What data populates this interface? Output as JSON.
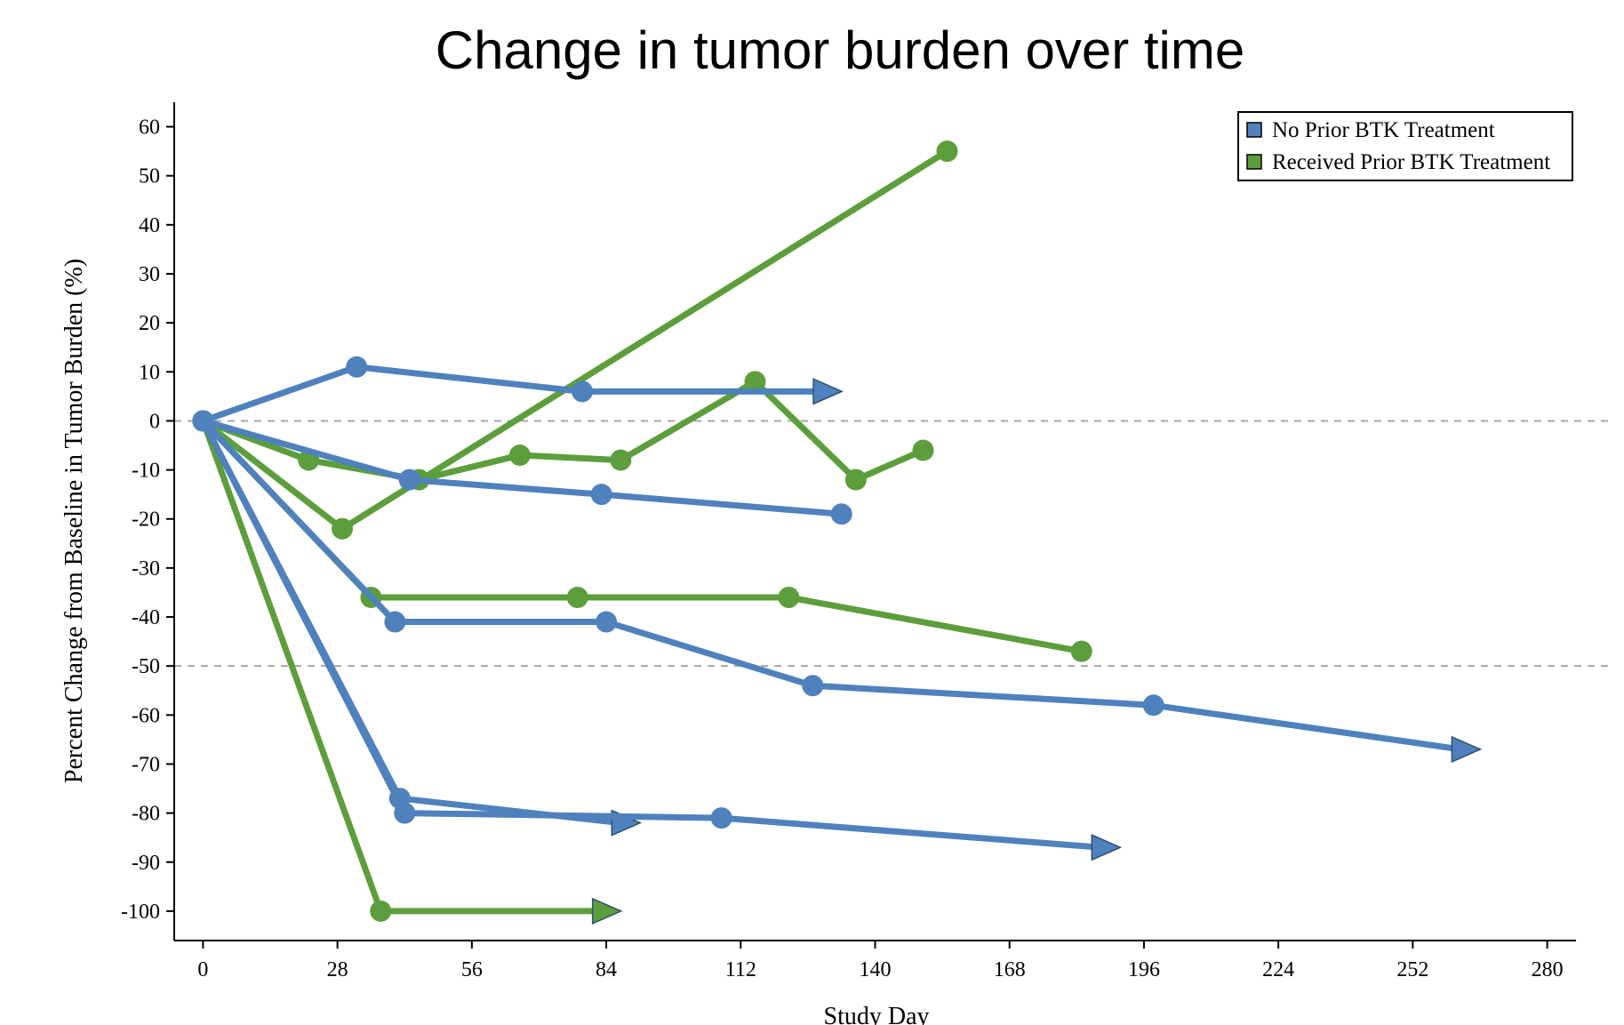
{
  "chart_data": {
    "type": "line",
    "title": "Change in tumor burden over time",
    "xlabel": "Study Day",
    "ylabel": "Percent Change from Baseline in Tumor Burden (%)",
    "xlim": [
      -6,
      286
    ],
    "ylim": [
      -106,
      65
    ],
    "xticks": [
      0,
      28,
      56,
      84,
      112,
      140,
      168,
      196,
      224,
      252,
      280
    ],
    "yticks": [
      60,
      50,
      40,
      30,
      20,
      10,
      0,
      -10,
      -20,
      -30,
      -40,
      -50,
      -60,
      -70,
      -80,
      -90,
      -100
    ],
    "reference_lines": [
      0,
      -50
    ],
    "grid": false,
    "legend_position": "top-right",
    "series": [
      {
        "name": "No Prior BTK Treatment",
        "color": "#4f81bd",
        "groups": [
          {
            "points": [
              [
                0,
                0
              ],
              [
                32,
                11
              ],
              [
                79,
                6
              ],
              [
                129,
                6
              ]
            ],
            "ongoing": true
          },
          {
            "points": [
              [
                0,
                0
              ],
              [
                43,
                -12
              ],
              [
                83,
                -15
              ],
              [
                133,
                -19
              ]
            ],
            "ongoing": false
          },
          {
            "points": [
              [
                0,
                0
              ],
              [
                40,
                -41
              ],
              [
                84,
                -41
              ],
              [
                127,
                -54
              ],
              [
                198,
                -58
              ],
              [
                262,
                -67
              ]
            ],
            "ongoing": true
          },
          {
            "points": [
              [
                0,
                0
              ],
              [
                41,
                -77
              ],
              [
                87,
                -82
              ]
            ],
            "ongoing": true
          },
          {
            "points": [
              [
                0,
                0
              ],
              [
                42,
                -80
              ],
              [
                108,
                -81
              ],
              [
                187,
                -87
              ]
            ],
            "ongoing": true
          }
        ]
      },
      {
        "name": "Received Prior BTK Treatment",
        "color": "#5c9e3b",
        "groups": [
          {
            "points": [
              [
                0,
                0
              ],
              [
                29,
                -22
              ],
              [
                155,
                55
              ]
            ],
            "ongoing": false
          },
          {
            "points": [
              [
                0,
                0
              ],
              [
                22,
                -8
              ],
              [
                45,
                -12
              ],
              [
                66,
                -7
              ],
              [
                87,
                -8
              ],
              [
                115,
                8
              ],
              [
                136,
                -12
              ],
              [
                150,
                -6
              ]
            ],
            "ongoing": false
          },
          {
            "points": [
              [
                0,
                0
              ],
              [
                35,
                -36
              ],
              [
                78,
                -36
              ],
              [
                122,
                -36
              ],
              [
                183,
                -47
              ]
            ],
            "ongoing": false
          },
          {
            "points": [
              [
                0,
                0
              ],
              [
                37,
                -100
              ],
              [
                83,
                -100
              ]
            ],
            "ongoing": true
          }
        ]
      }
    ]
  }
}
